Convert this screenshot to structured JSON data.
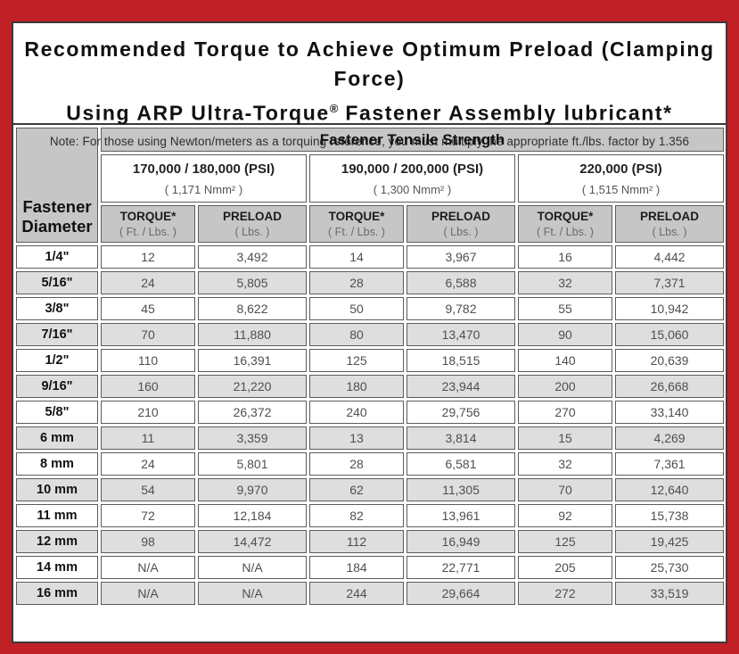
{
  "title": {
    "line1": "Recommended Torque to Achieve Optimum Preload (Clamping Force)",
    "line2_prefix": "Using ARP Ultra-Torque",
    "line2_reg": "®",
    "line2_suffix": " Fastener Assembly lubricant*",
    "note": "Note: For those using Newton/meters as a torquing reference, you must multiply the appropriate ft./lbs. factor by 1.356"
  },
  "table": {
    "corner": {
      "line1": "Fastener",
      "line2": "Diameter"
    },
    "group_header": "Fastener Tensile Strength",
    "groups": [
      {
        "psi": "170,000 / 180,000 (PSI)",
        "nmm": "( 1,171 Nmm² )"
      },
      {
        "psi": "190,000 / 200,000 (PSI)",
        "nmm": "( 1,300 Nmm² )"
      },
      {
        "psi": "220,000 (PSI)",
        "nmm": "( 1,515 Nmm² )"
      }
    ],
    "subheader": {
      "torque": "TORQUE*",
      "torque_unit": "( Ft. / Lbs. )",
      "preload": "PRELOAD",
      "preload_unit": "( Lbs. )"
    },
    "rows": [
      {
        "dia": "1/4\"",
        "t1": "12",
        "p1": "3,492",
        "t2": "14",
        "p2": "3,967",
        "t3": "16",
        "p3": "4,442"
      },
      {
        "dia": "5/16\"",
        "t1": "24",
        "p1": "5,805",
        "t2": "28",
        "p2": "6,588",
        "t3": "32",
        "p3": "7,371"
      },
      {
        "dia": "3/8\"",
        "t1": "45",
        "p1": "8,622",
        "t2": "50",
        "p2": "9,782",
        "t3": "55",
        "p3": "10,942"
      },
      {
        "dia": "7/16\"",
        "t1": "70",
        "p1": "11,880",
        "t2": "80",
        "p2": "13,470",
        "t3": "90",
        "p3": "15,060"
      },
      {
        "dia": "1/2\"",
        "t1": "110",
        "p1": "16,391",
        "t2": "125",
        "p2": "18,515",
        "t3": "140",
        "p3": "20,639"
      },
      {
        "dia": "9/16\"",
        "t1": "160",
        "p1": "21,220",
        "t2": "180",
        "p2": "23,944",
        "t3": "200",
        "p3": "26,668"
      },
      {
        "dia": "5/8\"",
        "t1": "210",
        "p1": "26,372",
        "t2": "240",
        "p2": "29,756",
        "t3": "270",
        "p3": "33,140"
      },
      {
        "dia": "6 mm",
        "t1": "11",
        "p1": "3,359",
        "t2": "13",
        "p2": "3,814",
        "t3": "15",
        "p3": "4,269"
      },
      {
        "dia": "8 mm",
        "t1": "24",
        "p1": "5,801",
        "t2": "28",
        "p2": "6,581",
        "t3": "32",
        "p3": "7,361"
      },
      {
        "dia": "10 mm",
        "t1": "54",
        "p1": "9,970",
        "t2": "62",
        "p2": "11,305",
        "t3": "70",
        "p3": "12,640"
      },
      {
        "dia": "11 mm",
        "t1": "72",
        "p1": "12,184",
        "t2": "82",
        "p2": "13,961",
        "t3": "92",
        "p3": "15,738"
      },
      {
        "dia": "12 mm",
        "t1": "98",
        "p1": "14,472",
        "t2": "112",
        "p2": "16,949",
        "t3": "125",
        "p3": "19,425"
      },
      {
        "dia": "14 mm",
        "t1": "N/A",
        "p1": "N/A",
        "t2": "184",
        "p2": "22,771",
        "t3": "205",
        "p3": "25,730"
      },
      {
        "dia": "16 mm",
        "t1": "N/A",
        "p1": "N/A",
        "t2": "244",
        "p2": "29,664",
        "t3": "272",
        "p3": "33,519"
      }
    ]
  },
  "colors": {
    "frame_red": "#c12026",
    "header_gray": "#c6c6c6",
    "alt_row_gray": "#dedede",
    "border_dark": "#5c5c5c"
  }
}
